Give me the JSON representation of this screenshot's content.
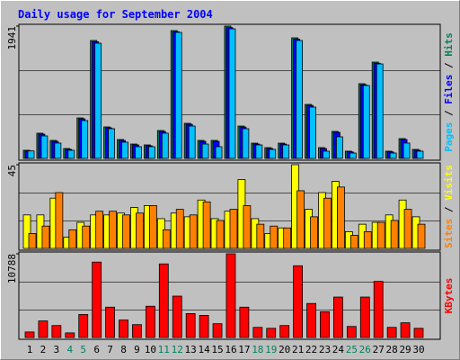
{
  "chart_data": [
    {
      "type": "bar",
      "title": "Daily usage for September 2004",
      "ylim": [
        0,
        1941
      ],
      "yticks": [
        1941
      ],
      "grid_lines": 3,
      "legend_separator": " / ",
      "series": [
        {
          "name": "Pages",
          "color": "#00c0ff",
          "values": [
            110,
            330,
            225,
            119,
            555,
            1690,
            436,
            238,
            172,
            172,
            370,
            1849,
            475,
            211,
            172,
            1901,
            436,
            198,
            132,
            198,
            1730,
            753,
            106,
            317,
            79,
            1070,
            1386,
            79,
            225,
            106
          ]
        },
        {
          "name": "Files",
          "color": "#0000ff",
          "values": [
            110,
            355,
            250,
            132,
            580,
            1712,
            448,
            264,
            198,
            185,
            395,
            1858,
            500,
            250,
            250,
            1920,
            460,
            211,
            145,
            211,
            1750,
            778,
            145,
            382,
            95,
            1080,
            1396,
            95,
            277,
            119
          ]
        },
        {
          "name": "Hits",
          "color": "#00805c",
          "values": [
            119,
            370,
            264,
            145,
            594,
            1730,
            462,
            277,
            211,
            198,
            409,
            1875,
            515,
            264,
            264,
            1941,
            475,
            224,
            158,
            224,
            1769,
            792,
            158,
            396,
            106,
            1096,
            1413,
            106,
            290,
            132
          ]
        }
      ]
    },
    {
      "type": "bar",
      "ylim": [
        0,
        45
      ],
      "yticks": [
        45
      ],
      "grid_lines": 3,
      "legend_separator": " / ",
      "series": [
        {
          "name": "Sites",
          "color": "#ff8000",
          "values": [
            8,
            12,
            30,
            10,
            12,
            20,
            20,
            18,
            19,
            23,
            10,
            21,
            18,
            25,
            15,
            21,
            23,
            13,
            12,
            11,
            31,
            17,
            27,
            33,
            7,
            9,
            14,
            15,
            21,
            13
          ]
        },
        {
          "name": "Visits",
          "color": "#ffff00",
          "values": [
            18,
            18,
            27,
            6,
            14,
            18,
            18,
            19,
            22,
            23,
            16,
            19,
            17,
            26,
            16,
            20,
            37,
            16,
            8,
            11,
            45,
            21,
            30,
            36,
            9,
            13,
            14,
            18,
            26,
            17
          ]
        }
      ]
    },
    {
      "type": "bar",
      "ylim": [
        0,
        10788
      ],
      "yticks": [
        10788
      ],
      "grid_lines": 3,
      "series": [
        {
          "name": "KBytes",
          "color": "#ff0000",
          "values": [
            711,
            2134,
            1541,
            593,
            2964,
            9721,
            3912,
            2252,
            1660,
            4031,
            9484,
            5335,
            3082,
            2845,
            1778,
            10788,
            3912,
            1304,
            1185,
            1541,
            9247,
            4386,
            3319,
            5216,
            1423,
            5216,
            7231,
            1304,
            1897,
            1185
          ]
        }
      ],
      "categories": [
        1,
        2,
        3,
        4,
        5,
        6,
        7,
        8,
        9,
        10,
        11,
        12,
        13,
        14,
        15,
        16,
        17,
        18,
        19,
        20,
        21,
        22,
        23,
        24,
        25,
        26,
        27,
        28,
        29,
        30
      ],
      "category_colors": [
        "#000000",
        "#000000",
        "#000000",
        "#00805c",
        "#00805c",
        "#000000",
        "#000000",
        "#000000",
        "#000000",
        "#000000",
        "#00805c",
        "#00805c",
        "#000000",
        "#000000",
        "#000000",
        "#000000",
        "#000000",
        "#00805c",
        "#00805c",
        "#000000",
        "#000000",
        "#000000",
        "#000000",
        "#000000",
        "#00805c",
        "#00805c",
        "#000000",
        "#000000",
        "#000000",
        "#000000"
      ]
    }
  ]
}
